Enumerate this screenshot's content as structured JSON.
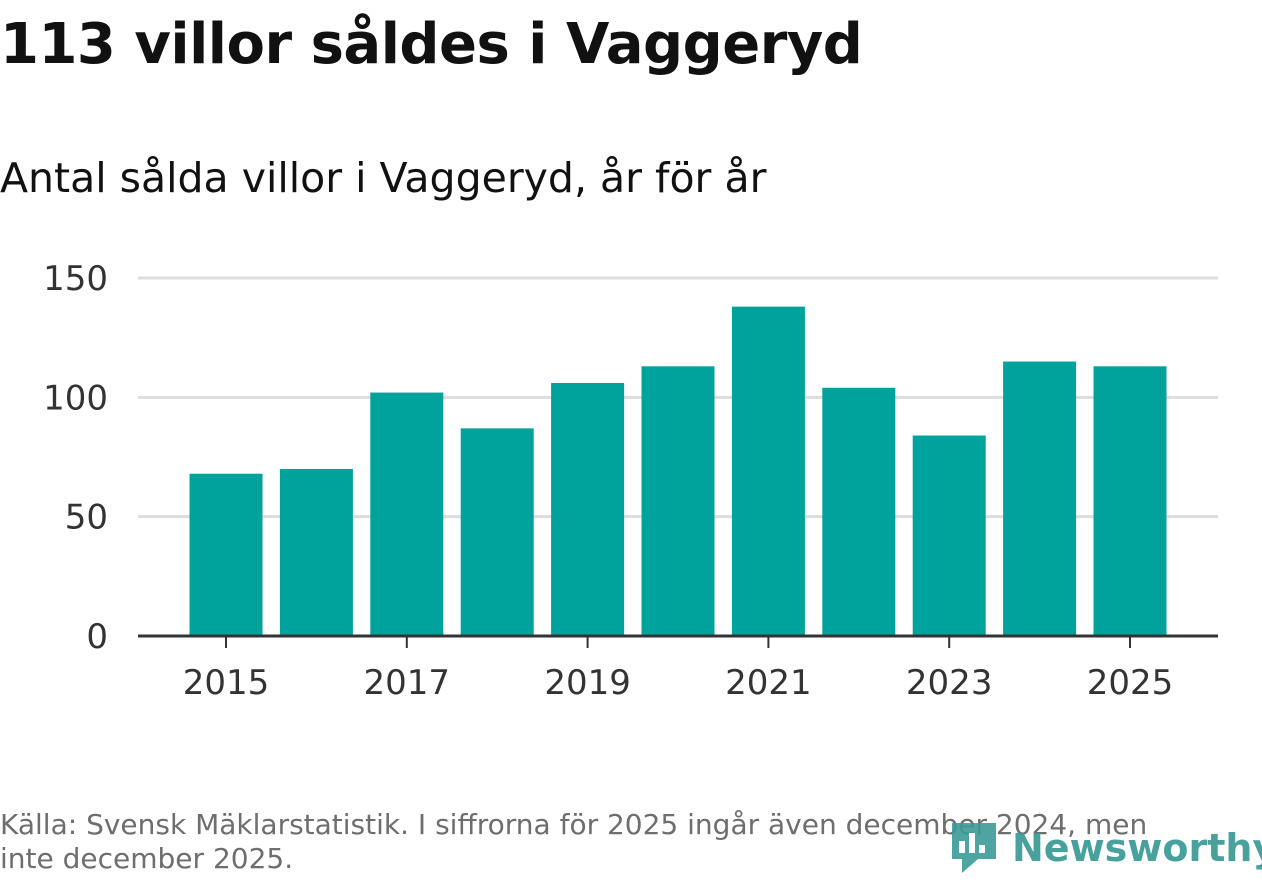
{
  "title": "113 villor såldes i Vaggeryd",
  "subtitle": "Antal sålda villor i Vaggeryd, år för år",
  "source": "Källa: Svensk Mäklarstatistik. I siffrorna för 2025 ingår även december 2024, men inte december 2025.",
  "logo": {
    "name": "newsworthy-logo-icon",
    "text": "Newsworthy",
    "color": "#3a9a96"
  },
  "chart_data": {
    "type": "bar",
    "categories": [
      "2015",
      "2016",
      "2017",
      "2018",
      "2019",
      "2020",
      "2021",
      "2022",
      "2023",
      "2024",
      "2025"
    ],
    "values": [
      68,
      70,
      102,
      87,
      106,
      113,
      138,
      104,
      84,
      115,
      113
    ],
    "x_tick_labels": [
      "2015",
      "2017",
      "2019",
      "2021",
      "2023",
      "2025"
    ],
    "y_ticks": [
      0,
      50,
      100,
      150
    ],
    "ylim": [
      0,
      150
    ],
    "xlabel": "",
    "ylabel": "",
    "grid": true,
    "legend": "none",
    "bar_color": "#00a39b",
    "grid_color": "#dddddd",
    "axis_color": "#333333"
  }
}
